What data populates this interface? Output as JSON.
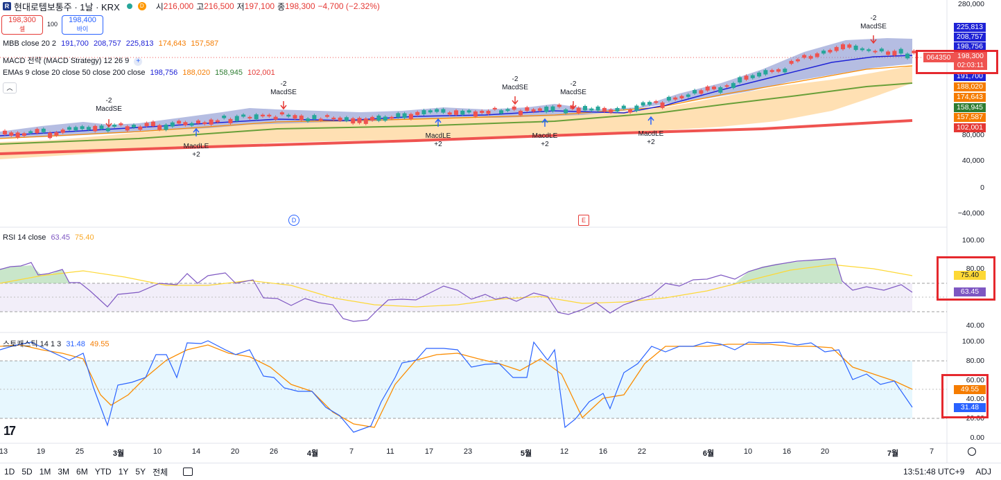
{
  "header": {
    "symbol_logo": "R",
    "title": "현대로템보통주 · 1날 · KRX",
    "o_label": "시",
    "o_value": "216,000",
    "h_label": "고",
    "h_value": "216,500",
    "l_label": "저",
    "l_value": "197,100",
    "c_label": "종",
    "c_value": "198,300",
    "change": "−4,700 (−2.32%)",
    "delay_badge": "D"
  },
  "trade": {
    "sell_price": "198,300",
    "sell_label": "셀",
    "qty": "100",
    "buy_price": "198,400",
    "buy_label": "바이"
  },
  "legends": {
    "mbb": {
      "name": "MBB close 20 2",
      "v1": "191,700",
      "v2": "208,757",
      "v3": "225,813",
      "v4": "174,643",
      "v5": "157,587"
    },
    "macd": {
      "name": "MACD 전략 (MACD Strategy) 12 26 9"
    },
    "emas": {
      "name": "EMAs 9 close 20 close 50 close 200 close",
      "v1": "198,756",
      "v2": "188,020",
      "v3": "158,945",
      "v4": "102,001"
    },
    "rsi": {
      "name": "RSI 14 close",
      "v1": "63.45",
      "v2": "75.40"
    },
    "stoch": {
      "name": "스토캐스틱 14 1 3",
      "v1": "31.48",
      "v2": "49.55"
    }
  },
  "price_axis": {
    "ticks": [
      "280,000",
      "80,000",
      "40,000",
      "0",
      "−40,000"
    ],
    "tags": [
      {
        "label": "225,813",
        "color": "#1e22d6"
      },
      {
        "label": "208,757",
        "color": "#1e22d6"
      },
      {
        "label": "198,756",
        "color": "#1e22d6"
      },
      {
        "label": "191,700",
        "color": "#1e22d6"
      },
      {
        "label": "188,020",
        "color": "#f57c00"
      },
      {
        "label": "174,643",
        "color": "#f57c00"
      },
      {
        "label": "158,945",
        "color": "#2e7d32"
      },
      {
        "label": "157,587",
        "color": "#f57c00"
      },
      {
        "label": "102,001",
        "color": "#e53935"
      }
    ],
    "current": {
      "code": "064350",
      "price": "198,300",
      "countdown": "02:03:11"
    }
  },
  "rsi_axis": {
    "ticks": [
      "100.00",
      "80.00",
      "40.00"
    ],
    "tag1": "75.40",
    "tag2": "63.45"
  },
  "stoch_axis": {
    "ticks": [
      "100.00",
      "80.00",
      "60.00",
      "40.00",
      "20.00",
      "0.00"
    ],
    "tag1": "49.55",
    "tag2": "31.48"
  },
  "signals": [
    {
      "count": "-2",
      "name": "MacdSE"
    },
    {
      "count": "-2",
      "name": "MacdSE"
    },
    {
      "count": "-2",
      "name": "MacdSE"
    },
    {
      "count": "-2",
      "name": "MacdSE"
    },
    {
      "count": "-2",
      "name": "MacdSE"
    },
    {
      "count": "+2",
      "name": "MacdLE"
    },
    {
      "count": "+2",
      "name": "MacdLE"
    },
    {
      "count": "+2",
      "name": "MacdLE"
    },
    {
      "count": "+2",
      "name": "MacdLE"
    }
  ],
  "events": {
    "d": "D",
    "e": "E"
  },
  "time_axis": [
    "13",
    "19",
    "25",
    "3월",
    "10",
    "14",
    "20",
    "26",
    "4월",
    "7",
    "11",
    "17",
    "23",
    "5월",
    "12",
    "16",
    "22",
    "6월",
    "10",
    "16",
    "20",
    "7월",
    "7"
  ],
  "ranges": [
    "1D",
    "5D",
    "1M",
    "3M",
    "6M",
    "YTD",
    "1Y",
    "5Y",
    "전체"
  ],
  "status": {
    "clock": "13:51:48 UTC+9",
    "adj": "ADJ"
  },
  "tv_logo": "17",
  "colors": {
    "up": "#26a69a",
    "down": "#ef5350",
    "mbb": "#2f3bd6",
    "rsi": "#7e57c2",
    "stoch_k": "#2962ff",
    "stoch_d": "#f57c00"
  }
}
